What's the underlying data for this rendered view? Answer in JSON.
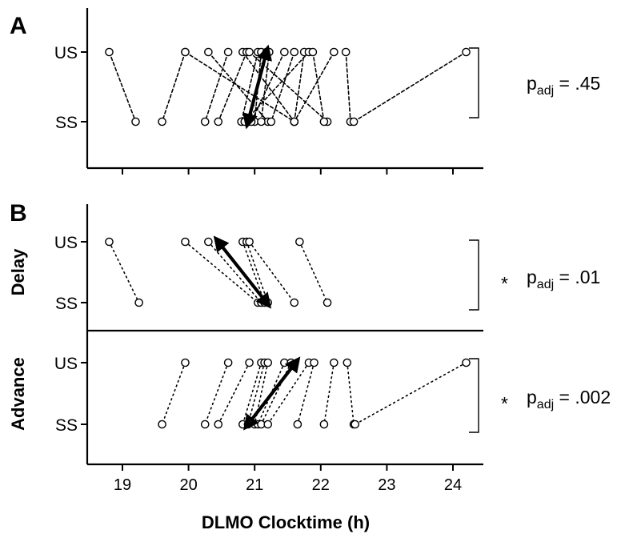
{
  "chart_data": {
    "type": "scatter",
    "xlabel": "DLMO Clocktime (h)",
    "x_ticks": [
      "19",
      "20",
      "21",
      "22",
      "23",
      "24"
    ],
    "xlim": [
      18.55,
      24.5
    ],
    "y_categories": [
      "US",
      "SS"
    ],
    "panels": [
      {
        "letter": "A",
        "subpanels": [
          {
            "row_label": "",
            "stat_star": "",
            "stat_p": "p",
            "stat_sub": "adj",
            "stat_val": " = .45",
            "line_style": "dashed",
            "pairs": [
              {
                "us": 18.8,
                "ss": 19.2
              },
              {
                "us": 19.95,
                "ss": 19.6
              },
              {
                "us": 19.95,
                "ss": 21.6
              },
              {
                "us": 20.3,
                "ss": 21.2
              },
              {
                "us": 20.6,
                "ss": 20.25
              },
              {
                "us": 20.82,
                "ss": 21.6
              },
              {
                "us": 20.88,
                "ss": 20.45
              },
              {
                "us": 20.92,
                "ss": 22.1
              },
              {
                "us": 21.05,
                "ss": 20.8
              },
              {
                "us": 21.1,
                "ss": 21.0
              },
              {
                "us": 21.18,
                "ss": 20.9
              },
              {
                "us": 21.22,
                "ss": 21.1
              },
              {
                "us": 21.45,
                "ss": 20.95
              },
              {
                "us": 21.6,
                "ss": 21.25
              },
              {
                "us": 21.75,
                "ss": 21.6
              },
              {
                "us": 21.82,
                "ss": 20.85
              },
              {
                "us": 21.88,
                "ss": 22.05
              },
              {
                "us": 22.2,
                "ss": 21.6
              },
              {
                "us": 22.38,
                "ss": 22.45
              },
              {
                "us": 24.2,
                "ss": 22.5
              }
            ],
            "mean": {
              "ss": 20.9,
              "us": 21.18
            }
          }
        ]
      },
      {
        "letter": "B",
        "subpanels": [
          {
            "row_label": "Delay",
            "stat_star": "*",
            "stat_p": "p",
            "stat_sub": "adj",
            "stat_val": " = .01",
            "line_style": "dotted",
            "pairs": [
              {
                "us": 18.8,
                "ss": 19.25
              },
              {
                "us": 19.95,
                "ss": 21.05
              },
              {
                "us": 20.3,
                "ss": 21.1
              },
              {
                "us": 20.82,
                "ss": 21.15
              },
              {
                "us": 20.88,
                "ss": 21.2
              },
              {
                "us": 20.92,
                "ss": 21.6
              },
              {
                "us": 21.68,
                "ss": 22.1
              }
            ],
            "mean": {
              "us": 20.45,
              "ss": 21.18
            }
          },
          {
            "row_label": "Advance",
            "stat_star": "*",
            "stat_p": "p",
            "stat_sub": "adj",
            "stat_val": " = .002",
            "line_style": "dotted",
            "pairs": [
              {
                "us": 19.95,
                "ss": 19.6
              },
              {
                "us": 20.6,
                "ss": 20.25
              },
              {
                "us": 20.92,
                "ss": 20.45
              },
              {
                "us": 21.1,
                "ss": 20.82
              },
              {
                "us": 21.15,
                "ss": 20.9
              },
              {
                "us": 21.2,
                "ss": 21.0
              },
              {
                "us": 21.45,
                "ss": 21.05
              },
              {
                "us": 21.55,
                "ss": 21.1
              },
              {
                "us": 21.82,
                "ss": 21.2
              },
              {
                "us": 21.9,
                "ss": 21.65
              },
              {
                "us": 22.2,
                "ss": 22.05
              },
              {
                "us": 22.4,
                "ss": 22.5
              },
              {
                "us": 24.2,
                "ss": 22.52
              }
            ],
            "mean": {
              "ss": 20.9,
              "us": 21.62
            }
          }
        ]
      }
    ]
  }
}
